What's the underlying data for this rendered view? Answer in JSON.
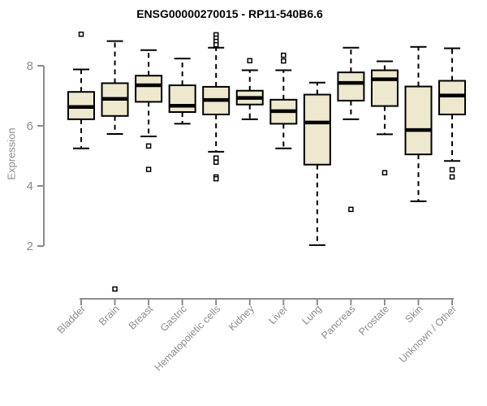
{
  "title": "ENSG00000270015 - RP11-540B6.6",
  "chart_data": {
    "type": "boxplot",
    "title": "ENSG00000270015 - RP11-540B6.6",
    "xlabel": "",
    "ylabel": "Expression",
    "y_ticks": [
      2,
      4,
      6,
      8
    ],
    "ylim": [
      2,
      8
    ],
    "grid": false,
    "legend": false,
    "colors": {
      "box_fill": "#ede8ce",
      "box_stroke": "#000000",
      "median": "#000000",
      "whisker": "#000000",
      "axis": "#8c8c8c",
      "tick_text": "#8c8c8c",
      "title_text": "#000000"
    },
    "categories": [
      "Bladder",
      "Brain",
      "Breast",
      "Gastric",
      "Hematopoietic cells",
      "Kidney",
      "Liver",
      "Lung",
      "Pancreas",
      "Prostate",
      "Skin",
      "Unknown / Other"
    ],
    "boxes": [
      {
        "category": "Bladder",
        "whisker_low": 5.25,
        "q1": 6.22,
        "median": 6.63,
        "q3": 7.13,
        "whisker_high": 7.88,
        "outliers": [
          9.05
        ]
      },
      {
        "category": "Brain",
        "whisker_low": 5.73,
        "q1": 6.33,
        "median": 6.9,
        "q3": 7.42,
        "whisker_high": 8.82,
        "outliers": [
          0.57
        ]
      },
      {
        "category": "Breast",
        "whisker_low": 5.65,
        "q1": 6.8,
        "median": 7.35,
        "q3": 7.67,
        "whisker_high": 8.52,
        "outliers": [
          5.33,
          4.55
        ]
      },
      {
        "category": "Gastric",
        "whisker_low": 6.07,
        "q1": 6.46,
        "median": 6.67,
        "q3": 7.35,
        "whisker_high": 8.24,
        "outliers": []
      },
      {
        "category": "Hematopoietic cells",
        "whisker_low": 5.14,
        "q1": 6.38,
        "median": 6.86,
        "q3": 7.3,
        "whisker_high": 8.6,
        "outliers": [
          9.03,
          8.92,
          8.81,
          8.7,
          4.93,
          4.79,
          4.3,
          4.24
        ]
      },
      {
        "category": "Kidney",
        "whisker_low": 6.22,
        "q1": 6.71,
        "median": 6.93,
        "q3": 7.17,
        "whisker_high": 7.85,
        "outliers": [
          8.17
        ]
      },
      {
        "category": "Liver",
        "whisker_low": 5.25,
        "q1": 6.07,
        "median": 6.49,
        "q3": 6.87,
        "whisker_high": 7.85,
        "outliers": [
          8.35,
          8.16
        ]
      },
      {
        "category": "Lung",
        "whisker_low": 2.03,
        "q1": 4.71,
        "median": 6.11,
        "q3": 7.04,
        "whisker_high": 7.44,
        "outliers": []
      },
      {
        "category": "Pancreas",
        "whisker_low": 6.22,
        "q1": 6.84,
        "median": 7.43,
        "q3": 7.78,
        "whisker_high": 8.6,
        "outliers": [
          3.22
        ]
      },
      {
        "category": "Prostate",
        "whisker_low": 5.72,
        "q1": 6.66,
        "median": 7.55,
        "q3": 7.85,
        "whisker_high": 8.15,
        "outliers": [
          4.44
        ]
      },
      {
        "category": "Skin",
        "whisker_low": 3.49,
        "q1": 5.05,
        "median": 5.86,
        "q3": 7.31,
        "whisker_high": 8.63,
        "outliers": []
      },
      {
        "category": "Unknown / Other",
        "whisker_low": 4.83,
        "q1": 6.38,
        "median": 7.01,
        "q3": 7.5,
        "whisker_high": 8.58,
        "outliers": [
          4.54,
          4.3
        ]
      }
    ]
  }
}
